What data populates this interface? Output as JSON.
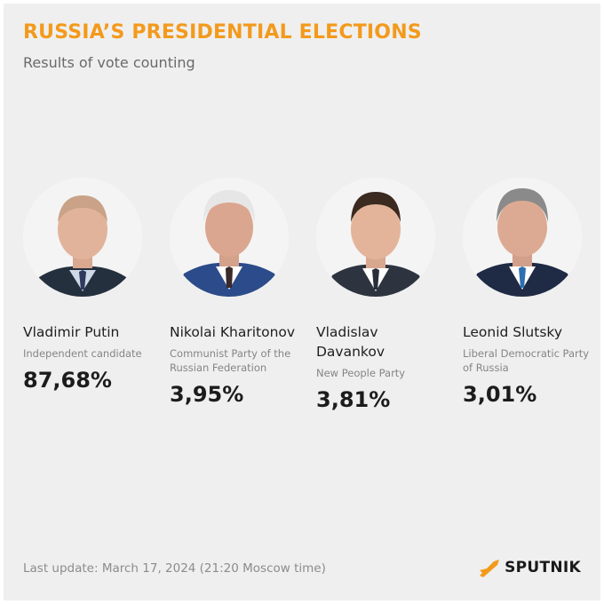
{
  "header": {
    "title": "RUSSIA’S PRESIDENTIAL ELECTIONS",
    "subtitle": "Results of vote counting"
  },
  "candidates": [
    {
      "name": "Vladimir Putin",
      "party": "Independent candidate",
      "percent": "87,68%",
      "photo": "portrait-photo"
    },
    {
      "name": "Nikolai Kharitonov",
      "party": "Communist Party of the Russian Federation",
      "percent": "3,95%",
      "photo": "portrait-photo"
    },
    {
      "name": "Vladislav Davankov",
      "party": "New People Party",
      "percent": "3,81%",
      "photo": "portrait-photo"
    },
    {
      "name": "Leonid Slutsky",
      "party": "Liberal Democratic Party of Russia",
      "percent": "3,01%",
      "photo": "portrait-photo"
    }
  ],
  "footer": {
    "last_update": "Last update: March 17, 2024 (21:20 Moscow time)",
    "brand": "SPUTNIK",
    "brand_icon": "sputnik-logo-icon"
  },
  "colors": {
    "accent": "#f39a1c",
    "background": "#efefef",
    "text": "#1e1e1e",
    "muted": "#858585"
  }
}
